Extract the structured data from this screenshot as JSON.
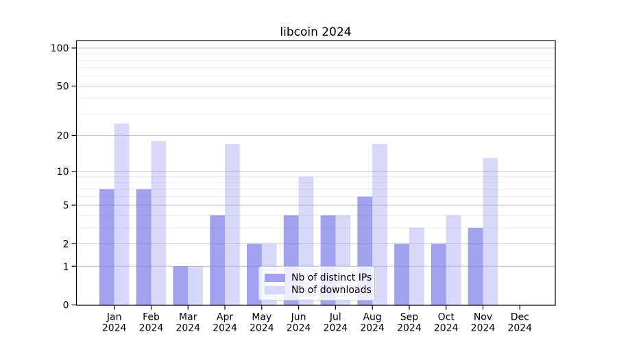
{
  "title": "libcoin 2024",
  "chart_data": {
    "type": "bar",
    "title": "libcoin 2024",
    "categories": [
      "Jan",
      "Feb",
      "Mar",
      "Apr",
      "May",
      "Jun",
      "Jul",
      "Aug",
      "Sep",
      "Oct",
      "Nov",
      "Dec"
    ],
    "category_year": "2024",
    "series": [
      {
        "name": "Nb of distinct IPs",
        "values": [
          7,
          7,
          1,
          4,
          2,
          4,
          4,
          6,
          2,
          2,
          3,
          0
        ],
        "base_color": "#6e6ee6",
        "alpha": 0.65,
        "composited_hex": "#a1a1ef"
      },
      {
        "name": "Nb of downloads",
        "values": [
          25,
          18,
          1,
          17,
          2,
          9,
          4,
          17,
          3,
          4,
          13,
          0
        ],
        "base_color": "#6e6ee6",
        "alpha": 0.27,
        "composited_hex": "#d8d8f8"
      }
    ],
    "xlabel": "",
    "ylabel": "",
    "yaxis": {
      "scale": "log1p",
      "major_ticks": [
        0,
        1,
        2,
        5,
        10,
        20,
        50,
        100
      ],
      "minor_ticks": [
        3,
        4,
        6,
        7,
        8,
        9,
        30,
        40,
        60,
        70,
        80,
        90
      ],
      "ymax": 115
    },
    "grid": {
      "major_color": "#c6c6c6",
      "minor_color": "#ebebeb"
    },
    "axis_color": "#000000",
    "legend": {
      "location": "lower center"
    }
  }
}
